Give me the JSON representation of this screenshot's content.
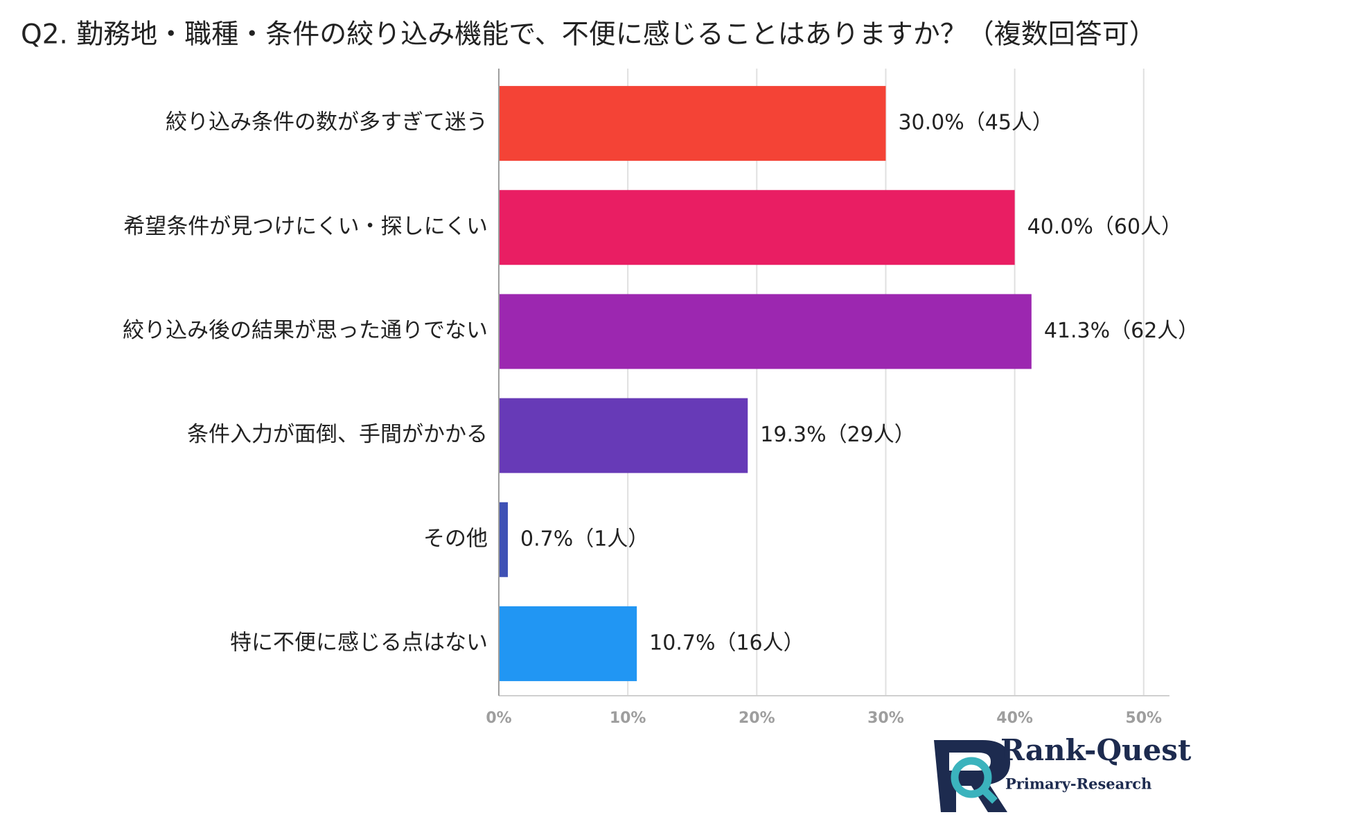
{
  "chart_data": {
    "type": "bar",
    "orientation": "horizontal",
    "title": "Q2. 勤務地・職種・条件の絞り込み機能で、不便に感じることはありますか？（複数回答可）",
    "categories": [
      "絞り込み条件の数が多すぎて迷う",
      "希望条件が見つけにくい・探しにくい",
      "絞り込み後の結果が思った通りでない",
      "条件入力が面倒、手間がかかる",
      "その他",
      "特に不便に感じる点はない"
    ],
    "values": [
      30.0,
      40.0,
      41.3,
      19.3,
      0.7,
      10.7
    ],
    "value_labels": [
      "30.0%（45人）",
      "40.0%（60人）",
      "41.3%（62人）",
      "19.3%（29人）",
      "0.7%（1人）",
      "10.7%（16人）"
    ],
    "colors": [
      "#f44336",
      "#e91e63",
      "#9c27b0",
      "#673ab7",
      "#3f51b5",
      "#2196f3"
    ],
    "xlim": [
      0,
      52
    ],
    "xticks": [
      {
        "value": 0,
        "label": "0%"
      },
      {
        "value": 10,
        "label": "10%"
      },
      {
        "value": 20,
        "label": "20%"
      },
      {
        "value": 30,
        "label": "30%"
      },
      {
        "value": 40,
        "label": "40%"
      },
      {
        "value": 50,
        "label": "50%"
      }
    ],
    "grid": true
  },
  "logo": {
    "name": "Rank-Quest",
    "tagline": "Primary-Research"
  }
}
